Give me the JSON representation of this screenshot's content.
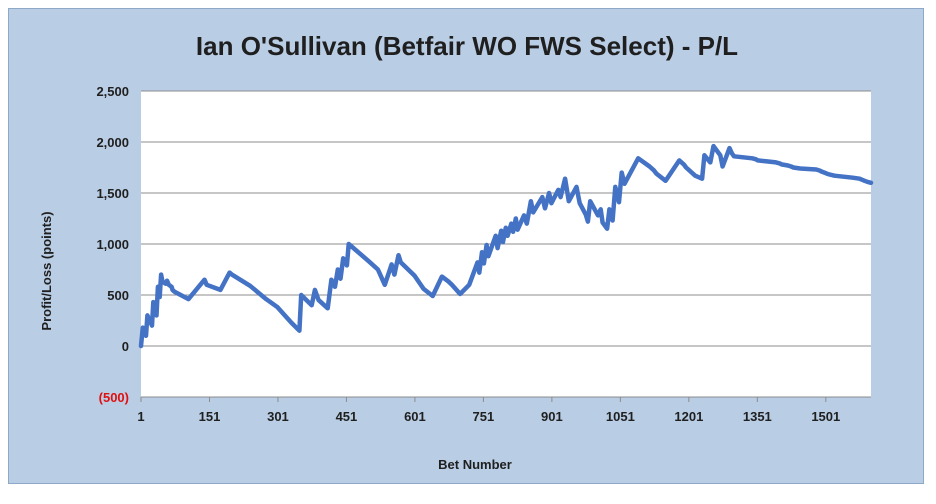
{
  "chart_data": {
    "type": "line",
    "title": "Ian O'Sullivan (Betfair WO FWS Select) - P/L",
    "xlabel": "Bet Number",
    "ylabel": "Profit/Loss (points)",
    "xlim": [
      1,
      1600
    ],
    "ylim": [
      -500,
      2500
    ],
    "y_ticks": [
      -500,
      0,
      500,
      1000,
      1500,
      2000,
      2500
    ],
    "y_tick_labels": [
      "(500)",
      "0",
      "500",
      "1,000",
      "1,500",
      "2,000",
      "2,500"
    ],
    "x_ticks": [
      1,
      151,
      301,
      451,
      601,
      751,
      901,
      1051,
      1201,
      1351,
      1501
    ],
    "x_tick_labels": [
      "1",
      "151",
      "301",
      "451",
      "601",
      "751",
      "901",
      "1051",
      "1201",
      "1351",
      "1501"
    ],
    "grid": true,
    "legend": "none",
    "series": [
      {
        "color": "#4472c4",
        "x": [
          1,
          5,
          12,
          15,
          25,
          28,
          35,
          38,
          42,
          45,
          48,
          55,
          58,
          62,
          68,
          70,
          75,
          105,
          140,
          145,
          175,
          195,
          200,
          240,
          275,
          300,
          330,
          348,
          352,
          375,
          382,
          390,
          410,
          418,
          426,
          432,
          438,
          444,
          452,
          456,
          500,
          520,
          535,
          550,
          556,
          565,
          570,
          600,
          620,
          640,
          660,
          675,
          682,
          700,
          720,
          738,
          742,
          748,
          752,
          758,
          762,
          778,
          782,
          790,
          794,
          800,
          804,
          812,
          816,
          822,
          826,
          840,
          846,
          855,
          860,
          880,
          886,
          895,
          900,
          915,
          920,
          930,
          938,
          955,
          962,
          975,
          980,
          985,
          1002,
          1008,
          1012,
          1022,
          1027,
          1034,
          1040,
          1048,
          1054,
          1060,
          1090,
          1115,
          1125,
          1130,
          1150,
          1180,
          1190,
          1195,
          1215,
          1230,
          1235,
          1248,
          1255,
          1270,
          1275,
          1290,
          1295,
          1300,
          1340,
          1348,
          1352,
          1372,
          1392,
          1400,
          1404,
          1418,
          1425,
          1430,
          1445,
          1480,
          1488,
          1492,
          1498,
          1503,
          1510,
          1520,
          1540,
          1560,
          1575,
          1580,
          1586,
          1592,
          1600
        ],
        "y": [
          0,
          180,
          100,
          300,
          200,
          430,
          300,
          580,
          480,
          700,
          630,
          610,
          640,
          600,
          580,
          550,
          530,
          460,
          650,
          600,
          550,
          720,
          700,
          590,
          460,
          380,
          230,
          150,
          500,
          400,
          550,
          450,
          370,
          650,
          580,
          750,
          660,
          860,
          790,
          1000,
          830,
          750,
          600,
          800,
          700,
          890,
          820,
          690,
          560,
          490,
          680,
          630,
          600,
          510,
          600,
          820,
          720,
          920,
          810,
          990,
          880,
          1080,
          960,
          1130,
          1020,
          1160,
          1080,
          1200,
          1120,
          1250,
          1140,
          1280,
          1200,
          1420,
          1310,
          1460,
          1350,
          1500,
          1400,
          1530,
          1460,
          1640,
          1420,
          1560,
          1400,
          1290,
          1220,
          1420,
          1280,
          1340,
          1210,
          1150,
          1340,
          1230,
          1560,
          1410,
          1700,
          1590,
          1840,
          1760,
          1720,
          1690,
          1620,
          1820,
          1780,
          1750,
          1670,
          1640,
          1870,
          1800,
          1960,
          1870,
          1760,
          1940,
          1890,
          1860,
          1840,
          1830,
          1820,
          1810,
          1800,
          1790,
          1780,
          1770,
          1760,
          1750,
          1740,
          1730,
          1720,
          1710,
          1700,
          1690,
          1680,
          1670,
          1660,
          1650,
          1640,
          1630,
          1620,
          1610,
          1600
        ]
      }
    ]
  }
}
